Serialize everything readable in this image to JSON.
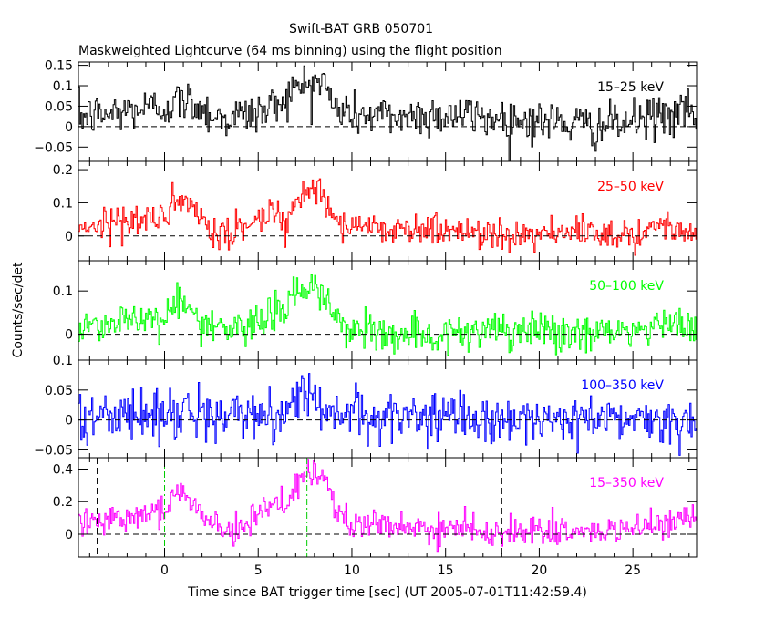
{
  "chart_data": {
    "type": "line",
    "title": "Swift-BAT GRB 050701",
    "subtitle": "Maskweighted Lightcurve (64 ms binning) using the flight position",
    "xlabel": "Time since BAT trigger time [sec] (UT 2005-07-01T11:42:59.4)",
    "ylabel": "Counts/sec/det",
    "xlim": [
      -4.6,
      28.4
    ],
    "x_ticks": [
      0,
      5,
      10,
      15,
      20,
      25
    ],
    "x_tick_labels": [
      "0",
      "5",
      "10",
      "15",
      "20",
      "25"
    ],
    "bin_width_sec": 0.064,
    "panels": [
      {
        "label": "15–25 keV",
        "color": "#000000",
        "ylim": [
          -0.085,
          0.158
        ],
        "y_ticks": [
          0.15,
          0.1,
          0.05,
          0,
          -0.05
        ],
        "y_tick_labels": [
          "0.15",
          "0.1",
          "0.05",
          "0",
          "−0.05"
        ],
        "noise": 0.026,
        "profile": [
          [
            -4.6,
            0.025
          ],
          [
            -3.0,
            0.03
          ],
          [
            -2.0,
            0.04
          ],
          [
            0.0,
            0.05
          ],
          [
            0.8,
            0.06
          ],
          [
            1.5,
            0.06
          ],
          [
            2.2,
            0.04
          ],
          [
            3.0,
            0.02
          ],
          [
            4.5,
            0.03
          ],
          [
            5.5,
            0.04
          ],
          [
            6.3,
            0.07
          ],
          [
            7.0,
            0.09
          ],
          [
            7.8,
            0.11
          ],
          [
            8.5,
            0.11
          ],
          [
            9.0,
            0.05
          ],
          [
            10.0,
            0.03
          ],
          [
            12.0,
            0.025
          ],
          [
            15.0,
            0.03
          ],
          [
            18.0,
            0.02
          ],
          [
            21.0,
            0.01
          ],
          [
            23.0,
            0.0
          ],
          [
            25.0,
            0.01
          ],
          [
            26.5,
            0.03
          ],
          [
            28.4,
            0.03
          ]
        ]
      },
      {
        "label": "25–50 keV",
        "color": "#ff0000",
        "ylim": [
          -0.075,
          0.225
        ],
        "y_ticks": [
          0.2,
          0.1,
          0
        ],
        "y_tick_labels": [
          "0.2",
          "0.1",
          "0"
        ],
        "noise": 0.024,
        "profile": [
          [
            -4.6,
            0.03
          ],
          [
            -3.0,
            0.04
          ],
          [
            -1.0,
            0.05
          ],
          [
            0.0,
            0.06
          ],
          [
            0.7,
            0.09
          ],
          [
            1.2,
            0.1
          ],
          [
            1.8,
            0.05
          ],
          [
            2.5,
            0.02
          ],
          [
            3.3,
            -0.005
          ],
          [
            4.0,
            0.02
          ],
          [
            5.0,
            0.05
          ],
          [
            5.8,
            0.08
          ],
          [
            6.5,
            0.05
          ],
          [
            7.0,
            0.1
          ],
          [
            7.6,
            0.14
          ],
          [
            8.4,
            0.13
          ],
          [
            9.0,
            0.07
          ],
          [
            9.8,
            0.03
          ],
          [
            12.0,
            0.025
          ],
          [
            15.0,
            0.015
          ],
          [
            18.0,
            0.01
          ],
          [
            22.0,
            0.005
          ],
          [
            25.0,
            0.01
          ],
          [
            26.5,
            0.03
          ],
          [
            28.4,
            0.03
          ]
        ]
      },
      {
        "label": "50–100 keV",
        "color": "#00ff00",
        "ylim": [
          -0.06,
          0.17
        ],
        "y_ticks": [
          0.1,
          0
        ],
        "y_tick_labels": [
          "0.1",
          "0"
        ],
        "noise": 0.022,
        "profile": [
          [
            -4.6,
            0.02
          ],
          [
            -2.0,
            0.03
          ],
          [
            0.0,
            0.04
          ],
          [
            0.6,
            0.08
          ],
          [
            1.0,
            0.08
          ],
          [
            1.8,
            0.03
          ],
          [
            2.8,
            0.01
          ],
          [
            3.3,
            0.0
          ],
          [
            4.5,
            0.02
          ],
          [
            5.5,
            0.04
          ],
          [
            6.5,
            0.07
          ],
          [
            7.3,
            0.1
          ],
          [
            8.0,
            0.1
          ],
          [
            8.8,
            0.08
          ],
          [
            9.5,
            0.01
          ],
          [
            11.0,
            0.005
          ],
          [
            15.0,
            0.0
          ],
          [
            20.0,
            0.005
          ],
          [
            25.0,
            0.005
          ],
          [
            27.0,
            0.02
          ],
          [
            28.4,
            0.02
          ]
        ]
      },
      {
        "label": "100–350 keV",
        "color": "#0000ff",
        "ylim": [
          -0.063,
          0.1
        ],
        "y_ticks": [
          0.1,
          0.05,
          0,
          -0.05
        ],
        "y_tick_labels": [
          "0.1",
          "0.05",
          "0",
          "−0.05"
        ],
        "noise": 0.02,
        "profile": [
          [
            -4.6,
            0.005
          ],
          [
            0.0,
            0.01
          ],
          [
            1.0,
            0.015
          ],
          [
            3.0,
            0.005
          ],
          [
            6.0,
            0.01
          ],
          [
            7.0,
            0.03
          ],
          [
            7.7,
            0.05
          ],
          [
            8.4,
            0.03
          ],
          [
            9.0,
            0.01
          ],
          [
            12.0,
            0.005
          ],
          [
            20.0,
            0.0
          ],
          [
            28.4,
            0.003
          ]
        ]
      },
      {
        "label": "15–350 keV",
        "color": "#ff00ff",
        "ylim": [
          -0.14,
          0.47
        ],
        "y_ticks": [
          0.4,
          0.2,
          0
        ],
        "y_tick_labels": [
          "0.4",
          "0.2",
          "0"
        ],
        "noise": 0.045,
        "profile": [
          [
            -4.6,
            0.08
          ],
          [
            -3.0,
            0.1
          ],
          [
            -1.5,
            0.12
          ],
          [
            0.0,
            0.16
          ],
          [
            0.6,
            0.25
          ],
          [
            1.2,
            0.26
          ],
          [
            2.0,
            0.12
          ],
          [
            2.8,
            0.05
          ],
          [
            3.4,
            0.02
          ],
          [
            4.2,
            0.06
          ],
          [
            5.0,
            0.12
          ],
          [
            5.8,
            0.2
          ],
          [
            6.5,
            0.15
          ],
          [
            7.0,
            0.3
          ],
          [
            7.7,
            0.37
          ],
          [
            8.5,
            0.33
          ],
          [
            9.2,
            0.14
          ],
          [
            10.0,
            0.06
          ],
          [
            12.0,
            0.05
          ],
          [
            15.0,
            0.03
          ],
          [
            18.0,
            0.02
          ],
          [
            22.0,
            0.01
          ],
          [
            25.0,
            0.03
          ],
          [
            26.5,
            0.06
          ],
          [
            28.4,
            0.08
          ]
        ]
      }
    ],
    "annotations": {
      "black_dashed_vertical_x": [
        -3.6,
        18.0
      ],
      "green_dashdot_vertical_x": [
        0.0,
        7.6
      ],
      "zero_line_style": "dashed"
    }
  }
}
